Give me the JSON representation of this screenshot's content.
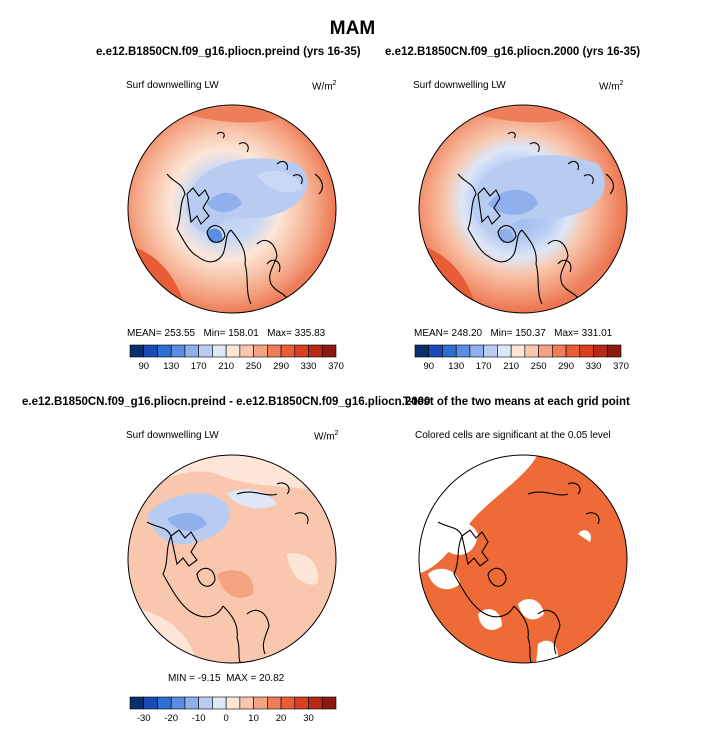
{
  "figure": {
    "title": "MAM"
  },
  "panels": [
    {
      "title": "e.e12.B1850CN.f09_g16.pliocn.preind (yrs 16-35)",
      "variable": "Surf downwelling LW",
      "units": "W/m",
      "units_sup": "2",
      "stats": {
        "mean_label": "MEAN=",
        "mean": "253.55",
        "min_label": "Min=",
        "min": "158.01",
        "max_label": "Max=",
        "max": "335.83"
      },
      "colorbar_ticks": [
        "90",
        "130",
        "170",
        "210",
        "250",
        "290",
        "330",
        "370"
      ]
    },
    {
      "title": "e.e12.B1850CN.f09_g16.pliocn.2000 (yrs 16-35)",
      "variable": "Surf downwelling LW",
      "units": "W/m",
      "units_sup": "2",
      "stats": {
        "mean_label": "MEAN=",
        "mean": "248.20",
        "min_label": "Min=",
        "min": "150.37",
        "max_label": "Max=",
        "max": "331.01"
      },
      "colorbar_ticks": [
        "90",
        "130",
        "170",
        "210",
        "250",
        "290",
        "330",
        "370"
      ]
    },
    {
      "title": "e.e12.B1850CN.f09_g16.pliocn.preind - e.e12.B1850CN.f09_g16.pliocn.2000",
      "variable": "Surf downwelling LW",
      "units": "W/m",
      "units_sup": "2",
      "stats": {
        "min_label": "MIN =",
        "min": "-9.15",
        "max_label": "MAX =",
        "max": "20.82"
      },
      "colorbar_ticks": [
        "-30",
        "-20",
        "-10",
        "0",
        "10",
        "20",
        "30"
      ]
    },
    {
      "title": "T-test of the two means at each grid point",
      "subtitle": "Colored cells are significant at the 0.05 level"
    }
  ],
  "colors": {
    "abs_scale": [
      "#08306b",
      "#1c49b5",
      "#2f6fd1",
      "#5b8ee3",
      "#8fb0ec",
      "#b8ccf2",
      "#dde7f8",
      "#fde6d8",
      "#f8c7ad",
      "#f4a383",
      "#ee7e5a",
      "#e85d38",
      "#d8401f",
      "#b52b17",
      "#8c1a0e"
    ],
    "diff_scale": [
      "#08306b",
      "#1c49b5",
      "#2f6fd1",
      "#5b8ee3",
      "#8fb0ec",
      "#b8ccf2",
      "#dde7f8",
      "#fde6d8",
      "#f8c7ad",
      "#f4a383",
      "#ee7e5a",
      "#e85d38",
      "#d8401f",
      "#b52b17",
      "#8c1a0e"
    ],
    "significant": "#ee6a36",
    "land_outline": "#000000"
  }
}
